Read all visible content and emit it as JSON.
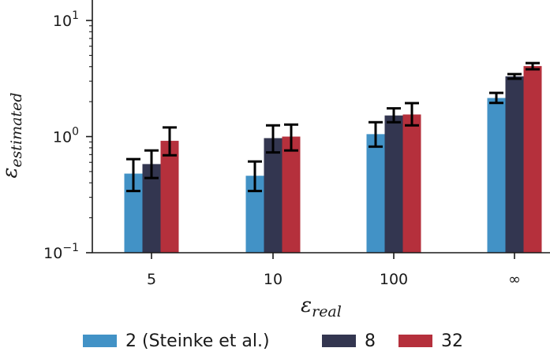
{
  "chart_data": {
    "type": "bar",
    "yscale": "log",
    "ylim": [
      0.1,
      10
    ],
    "y_ticks": [
      {
        "value": 0.1,
        "base": "10",
        "exp": "−1"
      },
      {
        "value": 1,
        "base": "10",
        "exp": "0"
      },
      {
        "value": 10,
        "base": "10",
        "exp": "1"
      }
    ],
    "categories": [
      "5",
      "10",
      "100",
      "∞"
    ],
    "xlabel": {
      "symbol": "ε",
      "sub": "real"
    },
    "ylabel": {
      "symbol": "ε",
      "sub": "estimated"
    },
    "series": [
      {
        "name": "2 (Steinke et al.)",
        "color": "#4292c6",
        "values": [
          0.48,
          0.46,
          1.05,
          2.15
        ],
        "err_low": [
          0.34,
          0.34,
          0.82,
          1.95
        ],
        "err_high": [
          0.64,
          0.61,
          1.33,
          2.38
        ]
      },
      {
        "name": "8",
        "color": "#333650",
        "values": [
          0.58,
          0.97,
          1.52,
          3.3
        ],
        "err_low": [
          0.44,
          0.73,
          1.33,
          3.15
        ],
        "err_high": [
          0.76,
          1.25,
          1.75,
          3.45
        ]
      },
      {
        "name": "32",
        "color": "#b5303c",
        "values": [
          0.92,
          1.0,
          1.55,
          4.05
        ],
        "err_low": [
          0.69,
          0.76,
          1.25,
          3.8
        ],
        "err_high": [
          1.2,
          1.27,
          1.94,
          4.3
        ]
      }
    ],
    "grid": false,
    "legend_position": "bottom"
  }
}
